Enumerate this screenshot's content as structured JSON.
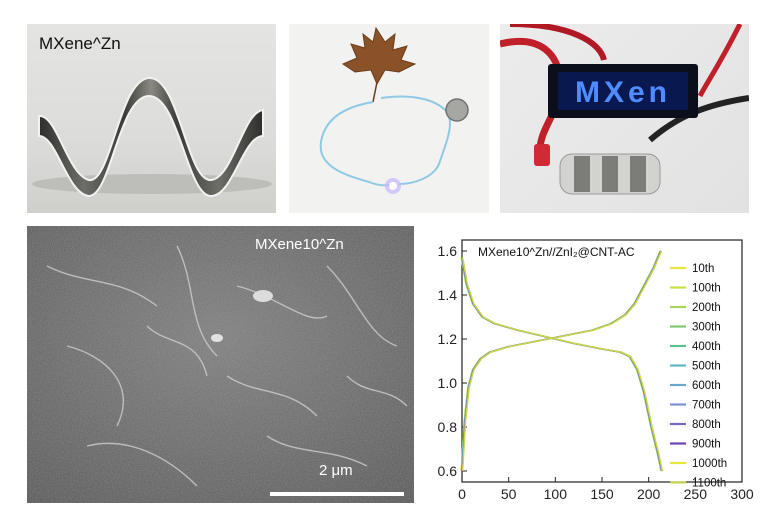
{
  "panels": {
    "flexible_foil": {
      "label": "MXene^Zn"
    },
    "led_badge": {
      "display_text": "MXen"
    },
    "sem": {
      "label": "MXene10^Zn",
      "scale_bar": "2 μm"
    }
  },
  "chart_data": {
    "type": "line",
    "title": "MXene10^Zn//ZnI₂@CNT-AC",
    "xlabel": "",
    "ylabel": "",
    "xlim": [
      0,
      300
    ],
    "ylim": [
      0.55,
      1.65
    ],
    "x_ticks": [
      "0",
      "50",
      "100",
      "150",
      "200",
      "250",
      "300"
    ],
    "y_ticks": [
      "0.6",
      "0.8",
      "1.0",
      "1.2",
      "1.4",
      "1.6"
    ],
    "legend_position": "right",
    "series": [
      {
        "name": "10th",
        "color": "#e8e63a"
      },
      {
        "name": "100th",
        "color": "#c8e048"
      },
      {
        "name": "200th",
        "color": "#a8d65a"
      },
      {
        "name": "300th",
        "color": "#7cc86a"
      },
      {
        "name": "400th",
        "color": "#5abf8e"
      },
      {
        "name": "500th",
        "color": "#5fb7c0"
      },
      {
        "name": "600th",
        "color": "#6aa6d0"
      },
      {
        "name": "700th",
        "color": "#7a90d4"
      },
      {
        "name": "800th",
        "color": "#7666c6"
      },
      {
        "name": "900th",
        "color": "#6a44b2"
      },
      {
        "name": "1000th",
        "color": "#e8e63a"
      },
      {
        "name": "1100th",
        "color": "#c8d64a"
      }
    ],
    "charge_curve": [
      [
        0,
        0.6
      ],
      [
        3,
        0.82
      ],
      [
        7,
        0.98
      ],
      [
        12,
        1.06
      ],
      [
        20,
        1.11
      ],
      [
        30,
        1.14
      ],
      [
        50,
        1.165
      ],
      [
        80,
        1.19
      ],
      [
        110,
        1.215
      ],
      [
        140,
        1.24
      ],
      [
        160,
        1.27
      ],
      [
        175,
        1.31
      ],
      [
        185,
        1.36
      ],
      [
        195,
        1.44
      ],
      [
        205,
        1.52
      ],
      [
        213,
        1.6
      ]
    ],
    "discharge_curve": [
      [
        0,
        1.57
      ],
      [
        5,
        1.45
      ],
      [
        12,
        1.36
      ],
      [
        22,
        1.3
      ],
      [
        35,
        1.27
      ],
      [
        60,
        1.24
      ],
      [
        90,
        1.21
      ],
      [
        120,
        1.18
      ],
      [
        150,
        1.155
      ],
      [
        170,
        1.14
      ],
      [
        180,
        1.12
      ],
      [
        188,
        1.06
      ],
      [
        195,
        0.96
      ],
      [
        203,
        0.8
      ],
      [
        210,
        0.68
      ],
      [
        214,
        0.6
      ]
    ]
  }
}
